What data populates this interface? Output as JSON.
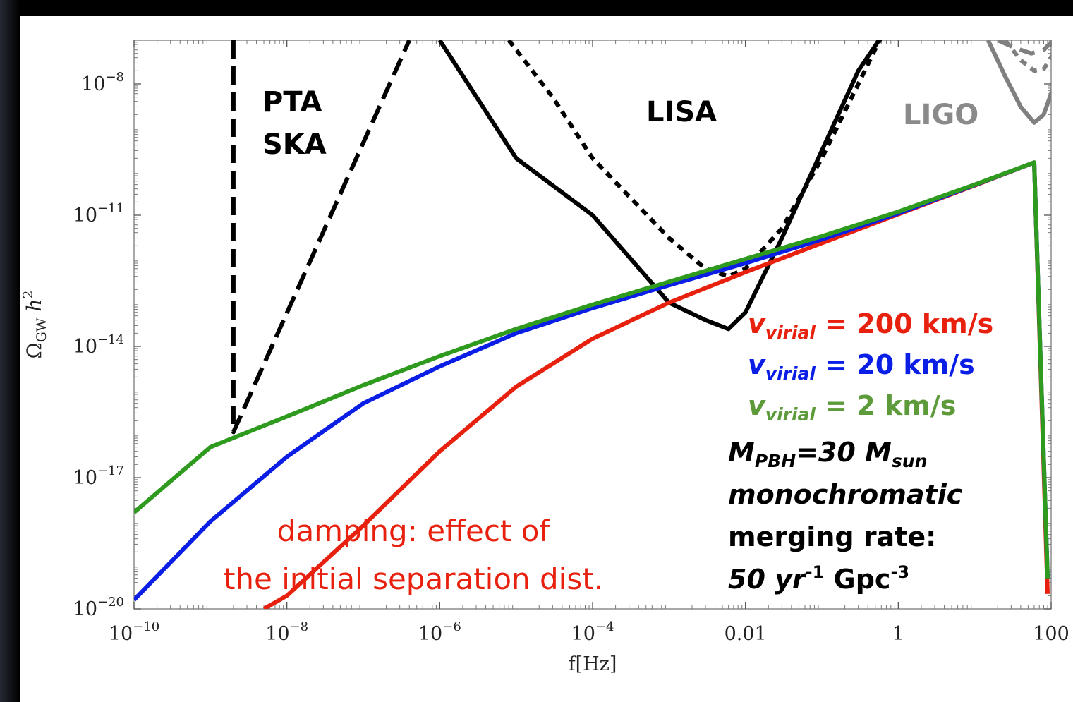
{
  "chart_data": {
    "type": "line",
    "x_scale": "log",
    "y_scale": "log",
    "xlim": [
      1e-10,
      100
    ],
    "ylim": [
      1e-20,
      1e-07
    ],
    "xticks": [
      {
        "value": 1e-10,
        "label": [
          "10",
          "−10"
        ]
      },
      {
        "value": 1e-08,
        "label": [
          "10",
          "−8"
        ]
      },
      {
        "value": 1e-06,
        "label": [
          "10",
          "−6"
        ]
      },
      {
        "value": 0.0001,
        "label": [
          "10",
          "−4"
        ]
      },
      {
        "value": 0.01,
        "label": [
          "0.01",
          ""
        ]
      },
      {
        "value": 1,
        "label": [
          "1",
          ""
        ]
      },
      {
        "value": 100,
        "label": [
          "100",
          ""
        ]
      }
    ],
    "yticks": [
      {
        "value": 1e-08,
        "label": [
          "10",
          "−8"
        ]
      },
      {
        "value": 1e-11,
        "label": [
          "10",
          "−11"
        ]
      },
      {
        "value": 1e-14,
        "label": [
          "10",
          "−14"
        ]
      },
      {
        "value": 1e-17,
        "label": [
          "10",
          "−17"
        ]
      },
      {
        "value": 1e-20,
        "label": [
          "10",
          "−20"
        ]
      }
    ],
    "xlabel": "f[Hz]",
    "ylabel": {
      "base": "Ω",
      "sub": "GW",
      "rest": " h",
      "sup": "2"
    },
    "sensitivity_curves": [
      {
        "detector": "PTA",
        "style": "long-dash",
        "color": "#000000",
        "points": [
          [
            2e-09,
            1e-07
          ],
          [
            2e-09,
            1.1e-16
          ],
          [
            4e-07,
            1e-07
          ]
        ]
      },
      {
        "detector": "LISA",
        "style": "solid",
        "color": "#000000",
        "points": [
          [
            1e-06,
            1e-07
          ],
          [
            1e-05,
            2e-10
          ],
          [
            0.0001,
            1e-11
          ],
          [
            0.001,
            1e-13
          ],
          [
            0.003,
            4e-14
          ],
          [
            0.006,
            2.5e-14
          ],
          [
            0.01,
            6e-14
          ],
          [
            0.03,
            3e-12
          ],
          [
            0.1,
            3e-10
          ],
          [
            0.3,
            2e-08
          ],
          [
            0.6,
            1.2e-07
          ]
        ]
      },
      {
        "detector": "LISA",
        "style": "dotted",
        "color": "#000000",
        "points": [
          [
            8e-06,
            1e-07
          ],
          [
            3e-05,
            5e-09
          ],
          [
            0.0001,
            2e-10
          ],
          [
            0.001,
            3e-12
          ],
          [
            0.003,
            6e-13
          ],
          [
            0.006,
            4e-13
          ],
          [
            0.01,
            6e-13
          ],
          [
            0.03,
            5e-12
          ],
          [
            0.1,
            2e-10
          ],
          [
            0.3,
            1e-08
          ],
          [
            0.6,
            1.2e-07
          ]
        ]
      },
      {
        "detector": "LIGO",
        "style": "solid",
        "color": "#808080",
        "points": [
          [
            15,
            1e-07
          ],
          [
            25,
            1.5e-08
          ],
          [
            40,
            3e-09
          ],
          [
            60,
            1.3e-09
          ],
          [
            80,
            2e-09
          ],
          [
            100,
            6e-09
          ],
          [
            110,
            1e-08
          ]
        ]
      },
      {
        "detector": "LIGO",
        "style": "dotted",
        "color": "#808080",
        "points": [
          [
            25,
            1e-07
          ],
          [
            40,
            3.5e-08
          ],
          [
            60,
            2e-08
          ],
          [
            80,
            2.2e-08
          ],
          [
            100,
            4e-08
          ],
          [
            110,
            7e-08
          ]
        ]
      },
      {
        "detector": "LIGO",
        "style": "dashed",
        "color": "#808080",
        "points": [
          [
            20,
            1e-07
          ],
          [
            35,
            6.5e-08
          ],
          [
            55,
            5e-08
          ],
          [
            80,
            6e-08
          ],
          [
            100,
            9e-08
          ],
          [
            110,
            1.1e-07
          ]
        ]
      }
    ],
    "series": [
      {
        "name": "v_virial = 200 km/s",
        "color": "#e8210f",
        "points": [
          [
            5e-09,
            1e-20
          ],
          [
            1e-08,
            2e-20
          ],
          [
            1e-07,
            8e-19
          ],
          [
            1e-06,
            4e-17
          ],
          [
            1e-05,
            1.2e-15
          ],
          [
            0.0001,
            1.5e-14
          ],
          [
            0.001,
            1e-13
          ],
          [
            0.01,
            5e-13
          ],
          [
            0.1,
            2.3e-12
          ],
          [
            1,
            1.05e-11
          ],
          [
            10,
            4.8e-11
          ],
          [
            60,
            1.6e-10
          ],
          [
            90,
            2.2e-20
          ]
        ]
      },
      {
        "name": "v_virial = 20 km/s",
        "color": "#0a1ee6",
        "points": [
          [
            1e-10,
            1.6e-20
          ],
          [
            1e-09,
            1e-18
          ],
          [
            1e-08,
            3e-17
          ],
          [
            1e-07,
            5e-16
          ],
          [
            1e-06,
            3.5e-15
          ],
          [
            1e-05,
            2e-14
          ],
          [
            0.0001,
            7.5e-14
          ],
          [
            0.001,
            2.5e-13
          ],
          [
            0.01,
            8e-13
          ],
          [
            0.1,
            2.8e-12
          ],
          [
            1,
            1.1e-11
          ],
          [
            10,
            4.9e-11
          ],
          [
            60,
            1.6e-10
          ],
          [
            90,
            5e-20
          ]
        ]
      },
      {
        "name": "v_virial = 2 km/s",
        "color": "#2e9a1e",
        "points": [
          [
            1e-10,
            1.6e-18
          ],
          [
            1e-09,
            5e-17
          ],
          [
            1e-08,
            2.5e-16
          ],
          [
            1e-07,
            1.3e-15
          ],
          [
            1e-06,
            6e-15
          ],
          [
            1e-05,
            2.5e-14
          ],
          [
            0.0001,
            9e-14
          ],
          [
            0.001,
            3e-13
          ],
          [
            0.01,
            1e-12
          ],
          [
            0.1,
            3.3e-12
          ],
          [
            1,
            1.2e-11
          ],
          [
            10,
            5e-11
          ],
          [
            60,
            1.6e-10
          ],
          [
            90,
            5e-20
          ]
        ]
      }
    ]
  },
  "labels": {
    "pta_line1": "PTA",
    "pta_line2": "SKA",
    "lisa": "LISA",
    "ligo": "LIGO"
  },
  "legend": {
    "v_symbol": "v",
    "v_subscript": "virial",
    "items": [
      {
        "value_text": " = 200 km/s",
        "color": "#e8210f"
      },
      {
        "value_text": " = 20 km/s",
        "color": "#0a1ee6"
      },
      {
        "value_text": " = 2 km/s",
        "color": "#5c9a3a"
      }
    ],
    "mass": {
      "m": "M",
      "m_sub": "PBH",
      "equals": "=30 ",
      "m2": "M",
      "m2_sub": "sun"
    },
    "distribution": "monochromatic",
    "rate_label": "merging rate:",
    "rate": {
      "number": "50 yr",
      "exp1": "-1",
      "unit": " Gpc",
      "exp2": "-3"
    }
  },
  "annotation": {
    "line1": "damping:  effect of",
    "line2": "the initial separation dist.",
    "color": "#e8210f"
  }
}
